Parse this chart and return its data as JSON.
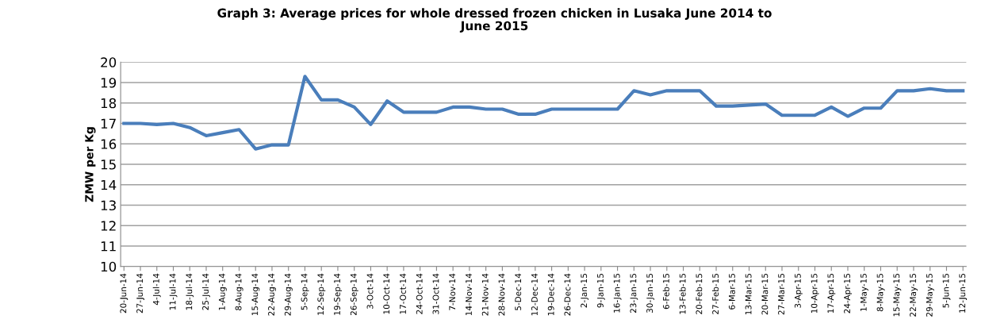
{
  "chart_data": {
    "type": "line",
    "title": "Graph 3: Average prices for whole dressed frozen chicken in Lusaka June 2014 to\nJune 2015",
    "ylabel": "ZMW per Kg",
    "categories": [
      "20-Jun-14",
      "27-Jun-14",
      "4-Jul-14",
      "11-Jul-14",
      "18-Jul-14",
      "25-Jul-14",
      "1-Aug-14",
      "8-Aug-14",
      "15-Aug-14",
      "22-Aug-14",
      "29-Aug-14",
      "5-Sep-14",
      "12-Sep-14",
      "19-Sep-14",
      "26-Sep-14",
      "3-Oct-14",
      "10-Oct-14",
      "17-Oct-14",
      "24-Oct-14",
      "31-Oct-14",
      "7-Nov-14",
      "14-Nov-14",
      "21-Nov-14",
      "28-Nov-14",
      "5-Dec-14",
      "12-Dec-14",
      "19-Dec-14",
      "26-Dec-14",
      "2-Jan-15",
      "9-Jan-15",
      "16-Jan-15",
      "23-Jan-15",
      "30-Jan-15",
      "6-Feb-15",
      "13-Feb-15",
      "20-Feb-15",
      "27-Feb-15",
      "6-Mar-15",
      "13-Mar-15",
      "20-Mar-15",
      "27-Mar-15",
      "3-Apr-15",
      "10-Apr-15",
      "17-Apr-15",
      "24-Apr-15",
      "1-May-15",
      "8-May-15",
      "15-May-15",
      "22-May-15",
      "29-May-15",
      "5-Jun-15",
      "12-Jun-15"
    ],
    "series": [
      {
        "color": "#4a7ebb",
        "values": [
          17.0,
          17.0,
          16.95,
          17.0,
          16.8,
          16.4,
          16.55,
          16.7,
          15.75,
          15.95,
          15.95,
          19.3,
          18.15,
          18.15,
          17.8,
          16.95,
          18.1,
          17.55,
          17.55,
          17.55,
          17.8,
          17.8,
          17.7,
          17.7,
          17.45,
          17.45,
          17.7,
          17.7,
          17.7,
          17.7,
          17.7,
          18.6,
          18.4,
          18.6,
          18.6,
          18.6,
          17.85,
          17.85,
          17.9,
          17.95,
          17.4,
          17.4,
          17.4,
          17.8,
          17.35,
          17.75,
          17.75,
          18.6,
          18.6,
          18.7,
          18.6,
          18.6
        ]
      }
    ],
    "ylim": [
      10,
      20
    ],
    "yticks": [
      10,
      11,
      12,
      13,
      14,
      15,
      16,
      17,
      18,
      19,
      20
    ],
    "grid": "y",
    "legend": false,
    "marker": "none",
    "line_style": "solid"
  }
}
